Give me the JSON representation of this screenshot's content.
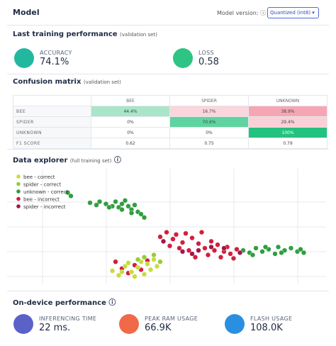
{
  "header": {
    "title": "Model",
    "version_label": "Model version:",
    "version_value": "Quantized (int8)"
  },
  "training": {
    "title": "Last training performance",
    "subtitle": "(validation set)",
    "metrics": [
      {
        "label": "ACCURACY",
        "value": "74.1%",
        "color": "#22b8a0"
      },
      {
        "label": "LOSS",
        "value": "0.58",
        "color": "#2ec483"
      }
    ]
  },
  "confusion": {
    "title": "Confusion matrix",
    "subtitle": "(validation set)",
    "columns": [
      "BEE",
      "SPIDER",
      "UNKNOWN"
    ],
    "rows": [
      {
        "label": "BEE",
        "cells": [
          "44.4%",
          "16.7%",
          "38.9%"
        ],
        "colors": [
          "#a9e6c9",
          "#fad6dc",
          "#f6a6b3"
        ]
      },
      {
        "label": "SPIDER",
        "cells": [
          "0%",
          "70.6%",
          "29.4%"
        ],
        "colors": [
          "#ffffff",
          "#5fd3a0",
          "#f9d0d6"
        ]
      },
      {
        "label": "UNKNOWN",
        "cells": [
          "0%",
          "0%",
          "100%"
        ],
        "colors": [
          "#ffffff",
          "#ffffff",
          "#23c27f"
        ]
      },
      {
        "label": "F1 SCORE",
        "cells": [
          "0.62",
          "0.75",
          "0.79"
        ],
        "colors": [
          "#ffffff",
          "#ffffff",
          "#ffffff"
        ]
      }
    ]
  },
  "explorer": {
    "title": "Data explorer",
    "subtitle": "(full training set)",
    "legend": [
      {
        "name": "bee - correct",
        "color": "#c8dc3c"
      },
      {
        "name": "spider - correct",
        "color": "#97cc3a"
      },
      {
        "name": "unknown - correct",
        "color": "#2f9e40"
      },
      {
        "name": "bee - incorrect",
        "color": "#d21f3c"
      },
      {
        "name": "spider - incorrect",
        "color": "#a2164a"
      }
    ],
    "points": [
      [
        26,
        70,
        2
      ],
      [
        28,
        68,
        2
      ],
      [
        29,
        71,
        2
      ],
      [
        31,
        69,
        2
      ],
      [
        33,
        67,
        2
      ],
      [
        34,
        71,
        2
      ],
      [
        35,
        66,
        2
      ],
      [
        36,
        69,
        2
      ],
      [
        37,
        72,
        2
      ],
      [
        38,
        67,
        2
      ],
      [
        39,
        64,
        2
      ],
      [
        40,
        68,
        2
      ],
      [
        41,
        62,
        2
      ],
      [
        42,
        60,
        2
      ],
      [
        39,
        61,
        2
      ],
      [
        36,
        64,
        2
      ],
      [
        32,
        66,
        2
      ],
      [
        43,
        57,
        2
      ],
      [
        19,
        79,
        2
      ],
      [
        20,
        76,
        2
      ],
      [
        74,
        28,
        2
      ],
      [
        76,
        26,
        2
      ],
      [
        78,
        30,
        2
      ],
      [
        80,
        27,
        2
      ],
      [
        82,
        29,
        2
      ],
      [
        84,
        25,
        2
      ],
      [
        85,
        31,
        2
      ],
      [
        87,
        28,
        2
      ],
      [
        89,
        30,
        2
      ],
      [
        91,
        27,
        2
      ],
      [
        92,
        29,
        2
      ],
      [
        93,
        26,
        2
      ],
      [
        86,
        26,
        2
      ],
      [
        81,
        31,
        2
      ],
      [
        77,
        24,
        2
      ],
      [
        48,
        40,
        3
      ],
      [
        50,
        44,
        3
      ],
      [
        52,
        38,
        3
      ],
      [
        53,
        42,
        3
      ],
      [
        55,
        35,
        3
      ],
      [
        56,
        43,
        3
      ],
      [
        58,
        39,
        3
      ],
      [
        60,
        34,
        3
      ],
      [
        61,
        44,
        3
      ],
      [
        62,
        30,
        3
      ],
      [
        64,
        36,
        3
      ],
      [
        65,
        28,
        3
      ],
      [
        66,
        33,
        3
      ],
      [
        68,
        27,
        3
      ],
      [
        69,
        31,
        3
      ],
      [
        70,
        25,
        3
      ],
      [
        72,
        29,
        3
      ],
      [
        57,
        28,
        3
      ],
      [
        54,
        30,
        3
      ],
      [
        59,
        22,
        3
      ],
      [
        63,
        24,
        3
      ],
      [
        67,
        22,
        3
      ],
      [
        71,
        21,
        3
      ],
      [
        51,
        32,
        3
      ],
      [
        49,
        36,
        4
      ],
      [
        55,
        27,
        4
      ],
      [
        60,
        28,
        4
      ],
      [
        64,
        31,
        4
      ],
      [
        68,
        30,
        4
      ],
      [
        73,
        26,
        4
      ],
      [
        58,
        25,
        4
      ],
      [
        34,
        18,
        3
      ],
      [
        36,
        12,
        3
      ],
      [
        38,
        8,
        3
      ],
      [
        40,
        15,
        3
      ],
      [
        42,
        11,
        3
      ],
      [
        44,
        19,
        3
      ],
      [
        33,
        10,
        0
      ],
      [
        35,
        6,
        0
      ],
      [
        37,
        14,
        0
      ],
      [
        39,
        9,
        0
      ],
      [
        41,
        13,
        0
      ],
      [
        43,
        7,
        0
      ],
      [
        44,
        16,
        0
      ],
      [
        45,
        11,
        0
      ],
      [
        46,
        20,
        0
      ],
      [
        47,
        14,
        0
      ],
      [
        40,
        5,
        0
      ],
      [
        42,
        18,
        0
      ],
      [
        38,
        17,
        0
      ],
      [
        36,
        9,
        0
      ],
      [
        43,
        22,
        1
      ],
      [
        46,
        24,
        1
      ],
      [
        48,
        18,
        1
      ],
      [
        41,
        20,
        1
      ]
    ]
  },
  "ondevice": {
    "title": "On-device performance",
    "metrics": [
      {
        "label": "INFERENCING TIME",
        "value": "22 ms.",
        "color": "#5a62c8"
      },
      {
        "label": "PEAK RAM USAGE",
        "value": "66.9K",
        "color": "#f06a4a"
      },
      {
        "label": "FLASH USAGE",
        "value": "108.0K",
        "color": "#2a8fe0"
      }
    ]
  }
}
